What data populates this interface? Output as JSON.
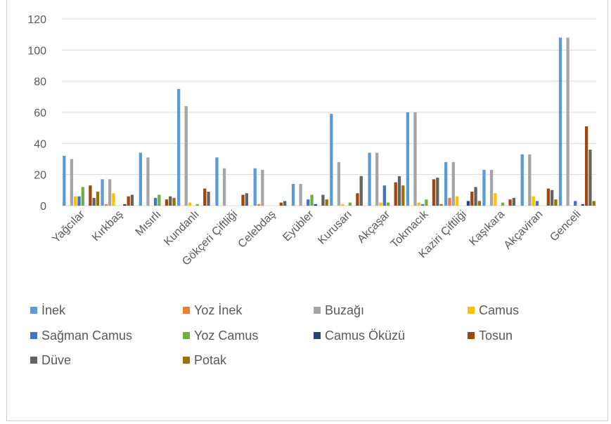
{
  "chart_data": {
    "type": "bar",
    "categories": [
      "Yağcılar",
      "Kırkbaş",
      "Mısırlı",
      "Kundanlı",
      "Gökçeri Çiftliği",
      "Celebdaş",
      "Eyübler",
      "Kurusarı",
      "Akçaşar",
      "Tokmacık",
      "Kaziri Çiftliği",
      "Kaşıkara",
      "Akçaviran",
      "Genceli"
    ],
    "yticks": [
      "0",
      "20",
      "40",
      "60",
      "80",
      "100",
      "120"
    ],
    "ylim": [
      0,
      120
    ],
    "legend_position": "bottom",
    "grid": true,
    "series": [
      {
        "name": "İnek",
        "color": "#5B9BD5",
        "values": [
          32,
          17,
          34,
          75,
          31,
          24,
          14,
          59,
          34,
          60,
          28,
          23,
          33,
          108
        ]
      },
      {
        "name": "Yoz İnek",
        "color": "#ED7D31",
        "values": [
          0,
          1,
          0,
          0,
          0,
          1,
          0,
          0,
          0,
          0,
          5,
          0,
          0,
          0
        ]
      },
      {
        "name": "Buzağı",
        "color": "#A5A5A5",
        "values": [
          30,
          17,
          31,
          64,
          24,
          23,
          14,
          28,
          34,
          60,
          28,
          23,
          33,
          108
        ]
      },
      {
        "name": "Camus",
        "color": "#FFC000",
        "values": [
          6,
          8,
          0,
          2,
          0,
          0,
          0,
          1,
          2,
          2,
          6,
          8,
          6,
          0
        ]
      },
      {
        "name": "Sağman Camus",
        "color": "#4472C4",
        "values": [
          6,
          0,
          5,
          0,
          0,
          0,
          4,
          0,
          13,
          1,
          0,
          0,
          3,
          3
        ]
      },
      {
        "name": "Yoz Camus",
        "color": "#70AD47",
        "values": [
          12,
          0,
          7,
          1,
          0,
          0,
          7,
          2,
          2,
          4,
          0,
          2,
          0,
          0
        ]
      },
      {
        "name": "Camus Öküzü",
        "color": "#264478",
        "values": [
          0,
          1,
          0,
          0,
          0,
          0,
          1,
          0,
          0,
          0,
          3,
          0,
          0,
          1
        ]
      },
      {
        "name": "Tosun",
        "color": "#9E480E",
        "values": [
          13,
          6,
          4,
          11,
          7,
          2,
          0,
          8,
          15,
          17,
          9,
          4,
          11,
          51
        ]
      },
      {
        "name": "Düve",
        "color": "#636363",
        "values": [
          5,
          7,
          6,
          9,
          8,
          3,
          7,
          19,
          19,
          18,
          12,
          5,
          10,
          36
        ]
      },
      {
        "name": "Potak",
        "color": "#997300",
        "values": [
          9,
          0,
          5,
          0,
          0,
          0,
          4,
          0,
          13,
          1,
          3,
          0,
          4,
          3
        ]
      }
    ]
  }
}
